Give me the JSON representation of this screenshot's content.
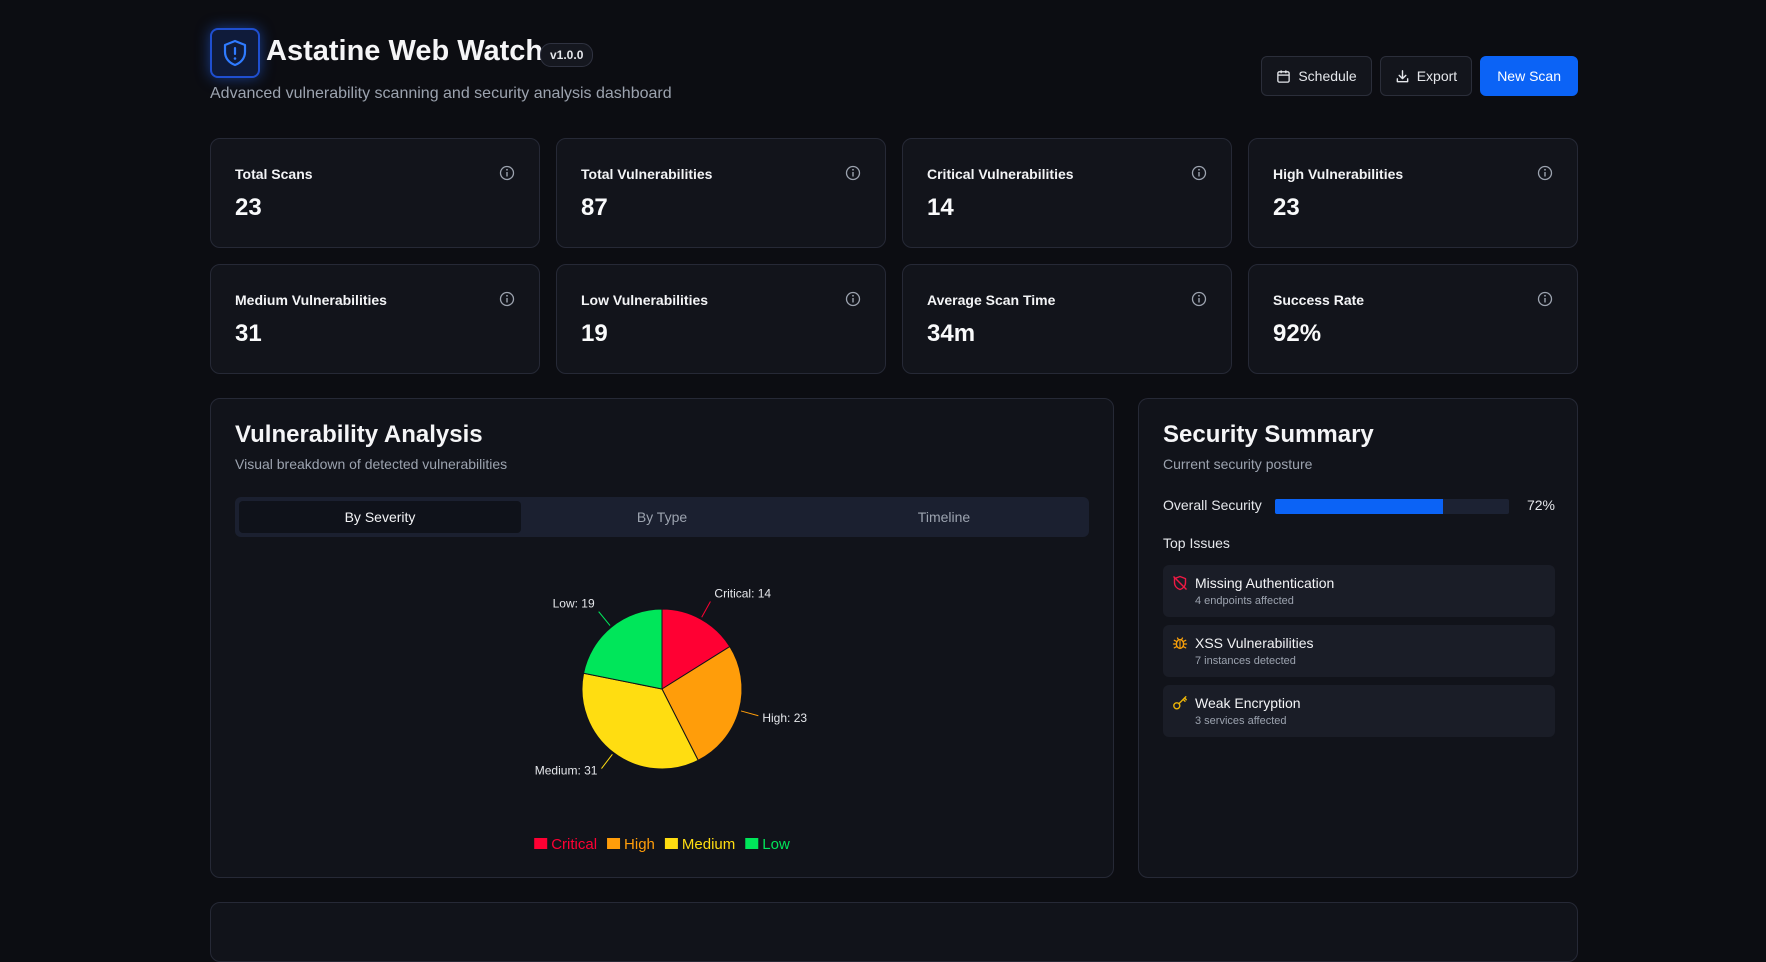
{
  "header": {
    "title": "Astatine Web Watch",
    "version": "v1.0.0",
    "subtitle": "Advanced vulnerability scanning and security analysis dashboard",
    "actions": {
      "schedule": "Schedule",
      "export": "Export",
      "new_scan": "New Scan"
    }
  },
  "stats": [
    {
      "label": "Total Scans",
      "value": "23"
    },
    {
      "label": "Total Vulnerabilities",
      "value": "87"
    },
    {
      "label": "Critical Vulnerabilities",
      "value": "14"
    },
    {
      "label": "High Vulnerabilities",
      "value": "23"
    },
    {
      "label": "Medium Vulnerabilities",
      "value": "31"
    },
    {
      "label": "Low Vulnerabilities",
      "value": "19"
    },
    {
      "label": "Average Scan Time",
      "value": "34m"
    },
    {
      "label": "Success Rate",
      "value": "92%"
    }
  ],
  "analysis": {
    "title": "Vulnerability Analysis",
    "subtitle": "Visual breakdown of detected vulnerabilities",
    "tabs": [
      "By Severity",
      "By Type",
      "Timeline"
    ],
    "active_tab": "By Severity"
  },
  "chart_data": {
    "type": "pie",
    "title": "",
    "categories": [
      "Critical",
      "High",
      "Medium",
      "Low"
    ],
    "values": [
      14,
      23,
      31,
      19
    ],
    "slice_labels": [
      "Critical: 14",
      "High: 23",
      "Medium: 31",
      "Low: 19"
    ],
    "colors": [
      "#ff0033",
      "#ff9d0a",
      "#ffdd11",
      "#00e65a"
    ],
    "legend": "bottom"
  },
  "summary": {
    "title": "Security Summary",
    "subtitle": "Current security posture",
    "overall_label": "Overall Security",
    "overall_value": 72,
    "overall_text": "72%",
    "top_issues_label": "Top Issues",
    "issues": [
      {
        "icon": "shield-off-icon",
        "title": "Missing Authentication",
        "detail": "4 endpoints affected",
        "color": "#ef1a44"
      },
      {
        "icon": "bug-icon",
        "title": "XSS Vulnerabilities",
        "detail": "7 instances detected",
        "color": "#f59e0b"
      },
      {
        "icon": "key-icon",
        "title": "Weak Encryption",
        "detail": "3 services affected",
        "color": "#eab308"
      }
    ]
  },
  "colors": {
    "accent": "#0b63f6",
    "background": "#0c0d12",
    "card": "#12141b"
  }
}
